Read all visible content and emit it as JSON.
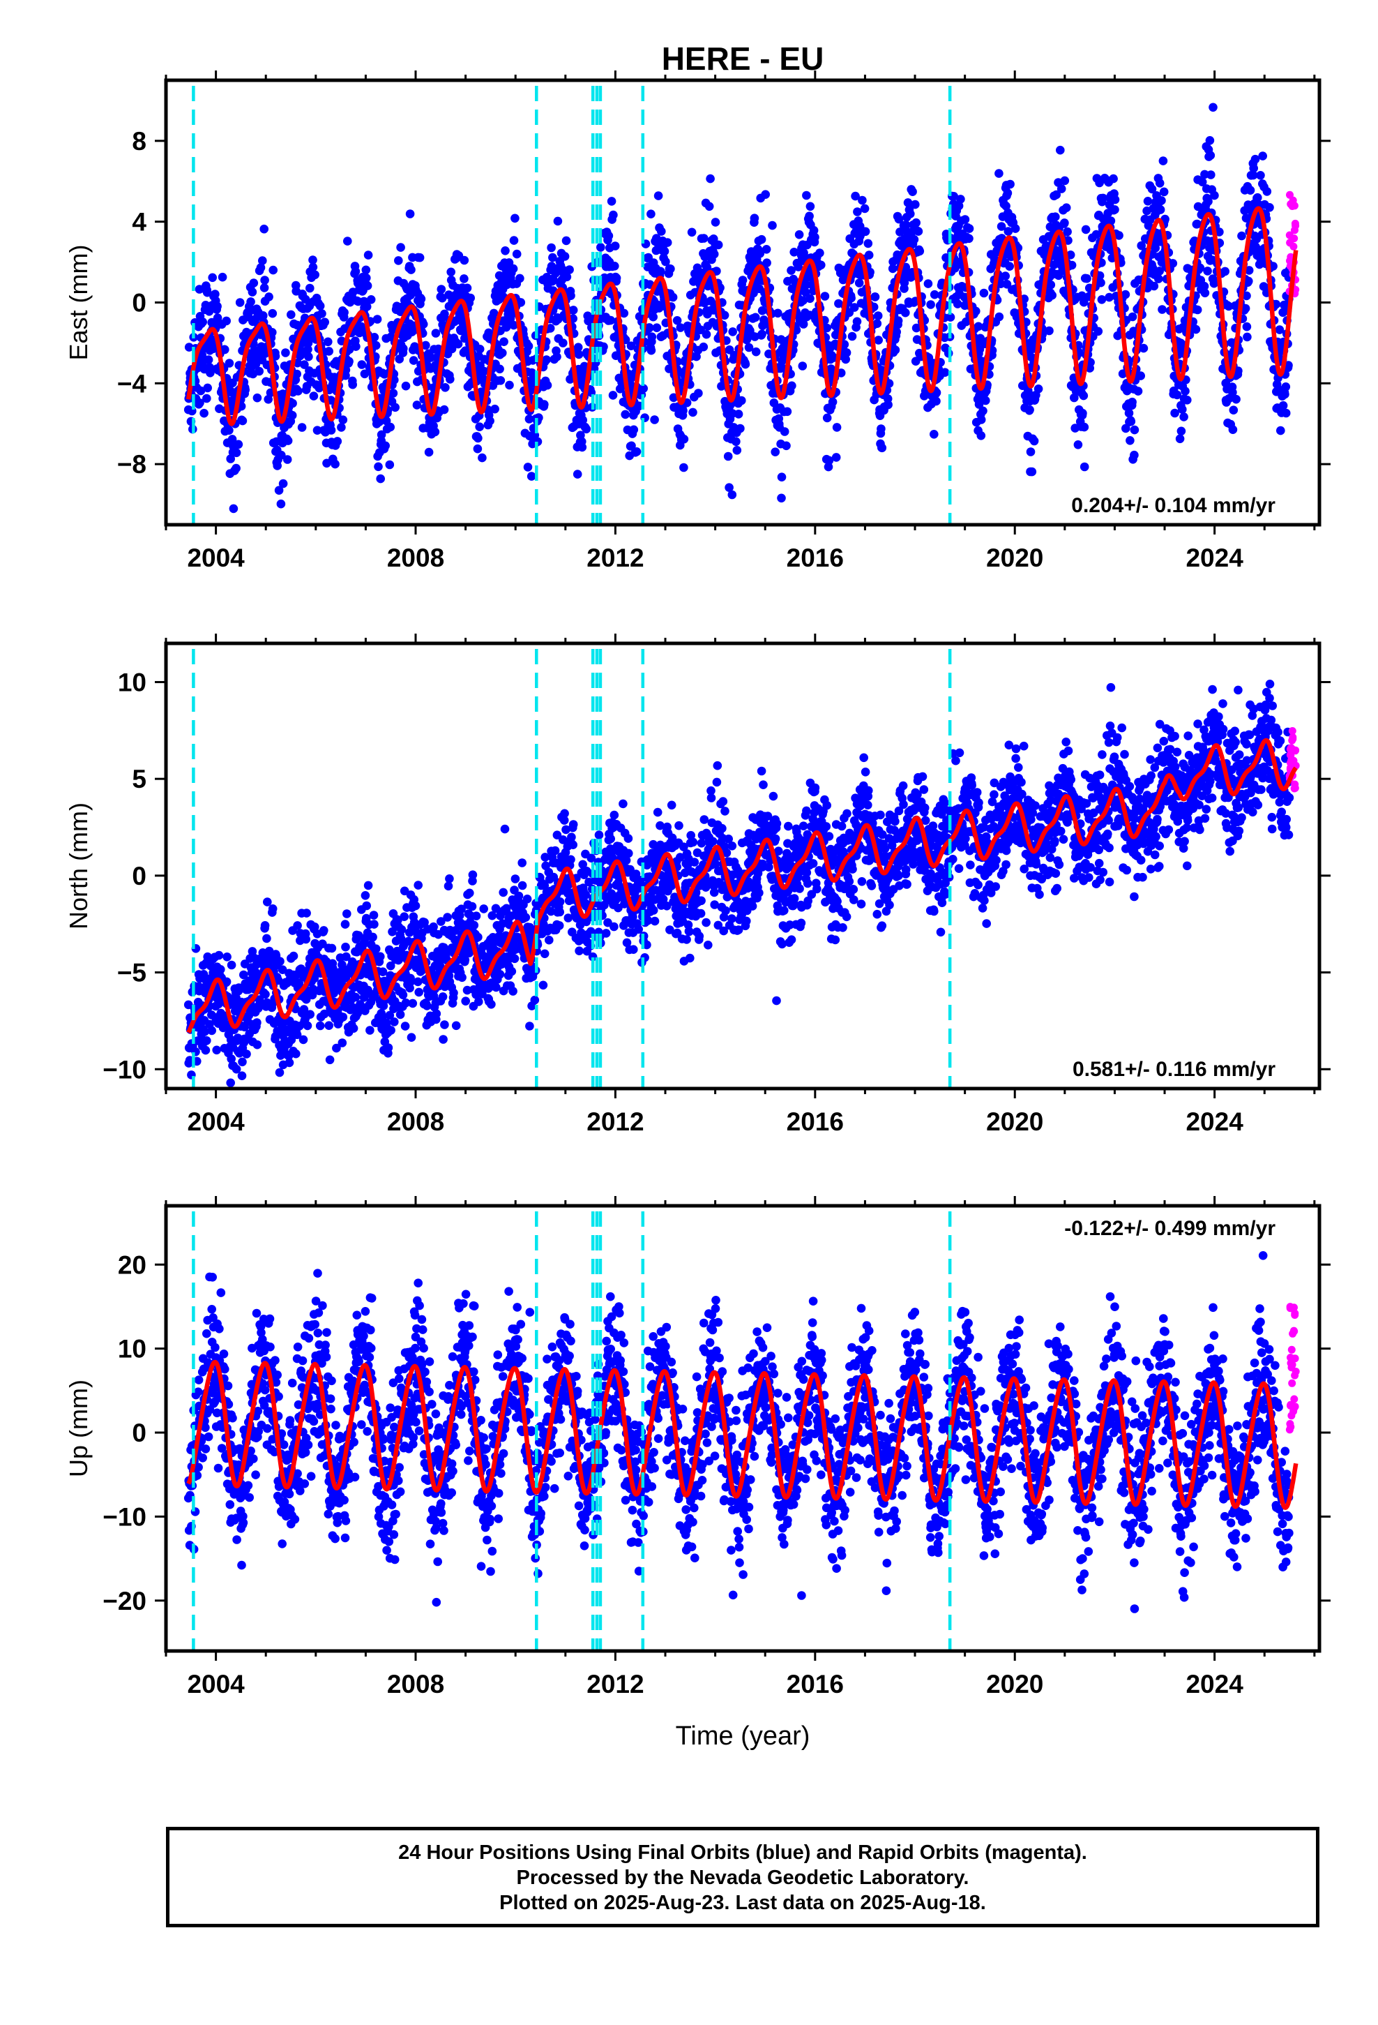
{
  "title": "HERE - EU",
  "xlabel": "Time (year)",
  "colors": {
    "final": "#0000ff",
    "rapid": "#ff00ff",
    "model": "#ff0000",
    "events": "#00e5ee"
  },
  "footer": {
    "line1": "24 Hour Positions Using Final Orbits (blue) and Rapid Orbits (magenta).",
    "line2": "Processed by the Nevada Geodetic Laboratory.",
    "line3": "Plotted on 2025-Aug-23. Last data on 2025-Aug-18."
  },
  "chart_data": [
    {
      "type": "scatter",
      "ylabel": "East (mm)",
      "xlim": [
        2003.0,
        2026.1
      ],
      "ylim": [
        -11,
        11
      ],
      "xticks": [
        2004,
        2008,
        2012,
        2016,
        2020,
        2024
      ],
      "yticks": [
        -8,
        -4,
        0,
        4,
        8
      ],
      "ytick_labels": [
        "−8",
        "−4",
        "0",
        "4",
        "8"
      ],
      "rate_label": "0.204+/- 0.104 mm/yr",
      "rate_position": "bottom-right",
      "series": [
        {
          "kind": "final",
          "x_range": [
            2003.45,
            2025.5
          ],
          "scatter_sd": 1.6
        },
        {
          "kind": "rapid",
          "x_range": [
            2025.5,
            2025.63
          ],
          "y_range": [
            0.4,
            5.8
          ]
        },
        {
          "kind": "model",
          "rate": 0.204,
          "offset": -1.2,
          "annual_amp": 2.2,
          "annual_phase": 2.6,
          "semi_amp": 0.6,
          "semi_phase": 1.0,
          "amp_growth": 0.04
        }
      ],
      "events": [
        2003.55,
        2010.42,
        2011.55,
        2011.63,
        2011.7,
        2012.55,
        2018.7
      ]
    },
    {
      "type": "scatter",
      "ylabel": "North (mm)",
      "xlim": [
        2003.0,
        2026.1
      ],
      "ylim": [
        -11,
        12
      ],
      "xticks": [
        2004,
        2008,
        2012,
        2016,
        2020,
        2024
      ],
      "yticks": [
        -10,
        -5,
        0,
        5,
        10
      ],
      "ytick_labels": [
        "−10",
        "−5",
        "0",
        "5",
        "10"
      ],
      "rate_label": "0.581+/- 0.116 mm/yr",
      "rate_position": "bottom-right",
      "series": [
        {
          "kind": "final",
          "x_range": [
            2003.45,
            2025.5
          ],
          "scatter_sd": 1.4
        },
        {
          "kind": "rapid",
          "x_range": [
            2025.5,
            2025.63
          ],
          "y_range": [
            4.5,
            7.5
          ]
        },
        {
          "kind": "model",
          "trend_points": [
            [
              2003.45,
              -7.0
            ],
            [
              2010.3,
              -3.6
            ],
            [
              2010.45,
              -1.2
            ],
            [
              2023.0,
              3.5
            ],
            [
              2023.3,
              5.2
            ],
            [
              2025.6,
              5.8
            ]
          ],
          "annual_amp": 1.1,
          "annual_phase": 1.8,
          "semi_amp": 0.4,
          "semi_phase": 0.6
        }
      ],
      "events": [
        2003.55,
        2010.42,
        2011.55,
        2011.63,
        2011.7,
        2012.55,
        2018.7
      ]
    },
    {
      "type": "scatter",
      "ylabel": "Up (mm)",
      "xlim": [
        2003.0,
        2026.1
      ],
      "ylim": [
        -26,
        27
      ],
      "xticks": [
        2004,
        2008,
        2012,
        2016,
        2020,
        2024
      ],
      "yticks": [
        -20,
        -10,
        0,
        10,
        20
      ],
      "ytick_labels": [
        "−20",
        "−10",
        "0",
        "10",
        "20"
      ],
      "rate_label": "-0.122+/- 0.499 mm/yr",
      "rate_position": "top-right",
      "series": [
        {
          "kind": "final",
          "x_range": [
            2003.45,
            2025.5
          ],
          "scatter_sd": 4.2
        },
        {
          "kind": "rapid",
          "x_range": [
            2025.5,
            2025.63
          ],
          "y_range": [
            -0.5,
            15.0
          ]
        },
        {
          "kind": "model",
          "rate": -0.122,
          "offset": 0.0,
          "annual_amp": 7.2,
          "annual_phase": 1.9,
          "semi_amp": 0.8,
          "semi_phase": 0.4,
          "amp_growth": 0
        }
      ],
      "events": [
        2003.55,
        2010.42,
        2011.55,
        2011.63,
        2011.7,
        2012.55,
        2018.7
      ]
    }
  ]
}
